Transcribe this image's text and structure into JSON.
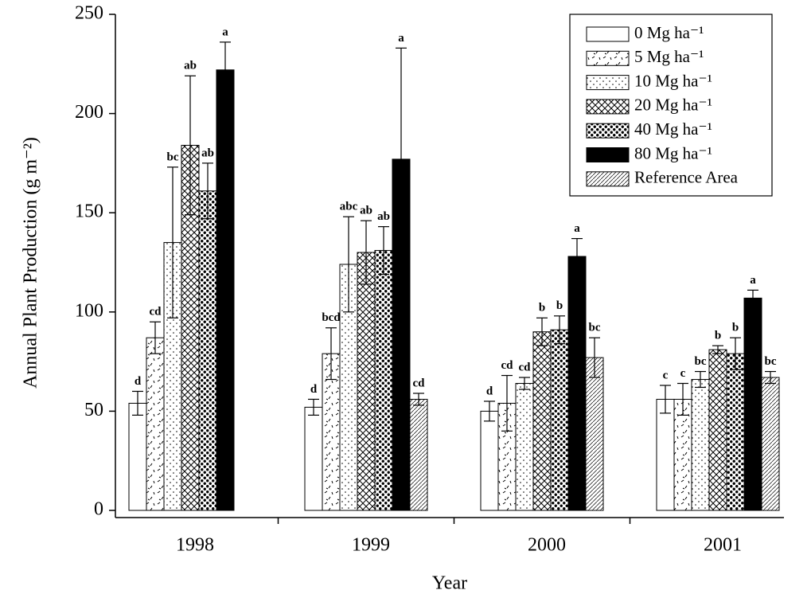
{
  "chart_data": {
    "type": "bar",
    "x_label": "Year",
    "y_label": "Annual Plant Production (g m⁻²)",
    "categories": [
      "1998",
      "1999",
      "2000",
      "2001"
    ],
    "ylim": [
      0,
      250
    ],
    "yticks": [
      0,
      50,
      100,
      150,
      200,
      250
    ],
    "legend": "upper right",
    "series": [
      {
        "name": "0 Mg ha⁻¹",
        "pattern": "white",
        "values": [
          54,
          52,
          50,
          56
        ],
        "errors": [
          6,
          4,
          5,
          7
        ],
        "letters": [
          "d",
          "d",
          "d",
          "c"
        ]
      },
      {
        "name": "5 Mg ha⁻¹",
        "pattern": "dashes",
        "values": [
          87,
          79,
          54,
          56
        ],
        "errors": [
          8,
          13,
          14,
          8
        ],
        "letters": [
          "cd",
          "bcd",
          "cd",
          "c"
        ]
      },
      {
        "name": "10 Mg ha⁻¹",
        "pattern": "sparse-dots",
        "values": [
          135,
          124,
          64,
          66
        ],
        "errors": [
          38,
          24,
          3,
          4
        ],
        "letters": [
          "bc",
          "abc",
          "cd",
          "bc"
        ]
      },
      {
        "name": "20 Mg ha⁻¹",
        "pattern": "crosshatch",
        "values": [
          184,
          130,
          90,
          81
        ],
        "errors": [
          35,
          16,
          7,
          2
        ],
        "letters": [
          "ab",
          "ab",
          "b",
          "b"
        ]
      },
      {
        "name": "40 Mg ha⁻¹",
        "pattern": "dots",
        "values": [
          161,
          131,
          91,
          79
        ],
        "errors": [
          14,
          12,
          7,
          8
        ],
        "letters": [
          "ab",
          "ab",
          "b",
          "b"
        ]
      },
      {
        "name": "80 Mg ha⁻¹",
        "pattern": "black",
        "values": [
          222,
          177,
          128,
          107
        ],
        "errors": [
          14,
          56,
          9,
          4
        ],
        "letters": [
          "a",
          "a",
          "a",
          "a"
        ]
      },
      {
        "name": "Reference Area",
        "pattern": "diagonal",
        "values": [
          null,
          56,
          77,
          67
        ],
        "errors": [
          null,
          3,
          10,
          3
        ],
        "letters": [
          null,
          "cd",
          "bc",
          "bc"
        ]
      }
    ]
  }
}
